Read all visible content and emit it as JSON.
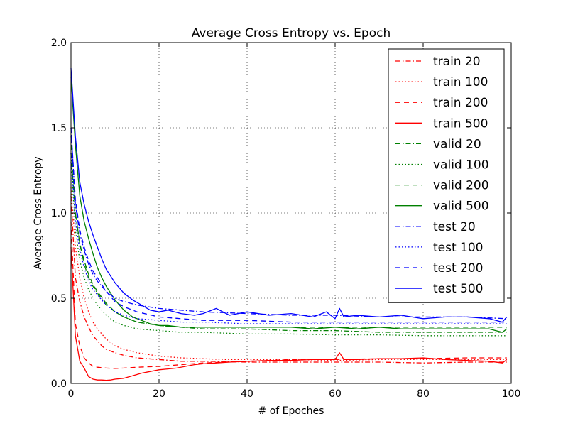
{
  "chart_data": {
    "type": "line",
    "title": "Average Cross Entropy vs. Epoch",
    "xlabel": "# of Epoches",
    "ylabel": "Average Cross Entropy",
    "xlim": [
      0,
      100
    ],
    "ylim": [
      0.0,
      2.0
    ],
    "xticks": [
      0,
      20,
      40,
      60,
      80,
      100
    ],
    "xtick_labels": [
      "0",
      "20",
      "40",
      "60",
      "80",
      "100"
    ],
    "yticks": [
      0.0,
      0.5,
      1.0,
      1.5,
      2.0
    ],
    "ytick_labels": [
      "0.0",
      "0.5",
      "1.0",
      "1.5",
      "2.0"
    ],
    "grid": true,
    "legend_position": "top-right",
    "series": [
      {
        "name": "train 20",
        "color": "#ff0000",
        "style": "dashdot",
        "x": [
          0,
          1,
          2,
          3,
          4,
          5,
          6,
          7,
          8,
          9,
          10,
          12,
          15,
          20,
          25,
          30,
          40,
          50,
          60,
          70,
          80,
          90,
          99
        ],
        "y": [
          1.1,
          0.62,
          0.48,
          0.39,
          0.33,
          0.28,
          0.25,
          0.22,
          0.2,
          0.19,
          0.18,
          0.165,
          0.15,
          0.14,
          0.13,
          0.13,
          0.125,
          0.125,
          0.125,
          0.125,
          0.12,
          0.125,
          0.125
        ]
      },
      {
        "name": "train 100",
        "color": "#ff0000",
        "style": "dotted",
        "x": [
          0,
          1,
          2,
          3,
          4,
          5,
          6,
          8,
          10,
          12,
          15,
          20,
          25,
          30,
          35,
          40,
          50,
          60,
          70,
          80,
          90,
          99
        ],
        "y": [
          1.15,
          0.8,
          0.62,
          0.5,
          0.42,
          0.36,
          0.32,
          0.26,
          0.22,
          0.2,
          0.18,
          0.16,
          0.15,
          0.145,
          0.14,
          0.14,
          0.14,
          0.135,
          0.14,
          0.14,
          0.14,
          0.14
        ]
      },
      {
        "name": "train 200",
        "color": "#ff0000",
        "style": "dashed",
        "x": [
          0,
          1,
          2,
          3,
          4,
          5,
          6,
          8,
          10,
          12,
          15,
          20,
          25,
          30,
          40,
          50,
          60,
          70,
          80,
          90,
          99
        ],
        "y": [
          0.95,
          0.35,
          0.22,
          0.15,
          0.12,
          0.1,
          0.095,
          0.09,
          0.088,
          0.09,
          0.095,
          0.1,
          0.11,
          0.12,
          0.13,
          0.14,
          0.14,
          0.145,
          0.145,
          0.15,
          0.15
        ]
      },
      {
        "name": "train 500",
        "color": "#ff0000",
        "style": "solid",
        "x": [
          0,
          1,
          2,
          3,
          4,
          5,
          6,
          7,
          8,
          9,
          10,
          12,
          14,
          16,
          18,
          20,
          22,
          24,
          26,
          28,
          30,
          33,
          36,
          40,
          45,
          50,
          55,
          60,
          61,
          62,
          65,
          70,
          75,
          80,
          85,
          90,
          95,
          98,
          99
        ],
        "y": [
          0.8,
          0.28,
          0.13,
          0.09,
          0.04,
          0.025,
          0.02,
          0.02,
          0.018,
          0.02,
          0.025,
          0.03,
          0.045,
          0.06,
          0.07,
          0.08,
          0.085,
          0.09,
          0.1,
          0.11,
          0.115,
          0.12,
          0.125,
          0.13,
          0.135,
          0.135,
          0.14,
          0.14,
          0.18,
          0.14,
          0.14,
          0.145,
          0.145,
          0.15,
          0.14,
          0.135,
          0.13,
          0.12,
          0.14
        ]
      },
      {
        "name": "valid 20",
        "color": "#008000",
        "style": "dashdot",
        "x": [
          0,
          1,
          2,
          3,
          4,
          5,
          6,
          8,
          10,
          12,
          15,
          20,
          25,
          30,
          35,
          40,
          50,
          60,
          70,
          80,
          90,
          99
        ],
        "y": [
          1.35,
          1.0,
          0.82,
          0.7,
          0.62,
          0.57,
          0.53,
          0.46,
          0.42,
          0.39,
          0.36,
          0.34,
          0.33,
          0.32,
          0.32,
          0.32,
          0.31,
          0.31,
          0.3,
          0.3,
          0.3,
          0.3
        ]
      },
      {
        "name": "valid 100",
        "color": "#008000",
        "style": "dotted",
        "x": [
          0,
          1,
          2,
          3,
          4,
          5,
          6,
          8,
          10,
          12,
          15,
          20,
          25,
          30,
          40,
          50,
          60,
          70,
          80,
          90,
          99
        ],
        "y": [
          1.3,
          0.9,
          0.72,
          0.62,
          0.55,
          0.5,
          0.46,
          0.4,
          0.36,
          0.34,
          0.32,
          0.31,
          0.3,
          0.3,
          0.29,
          0.29,
          0.285,
          0.285,
          0.28,
          0.28,
          0.28
        ]
      },
      {
        "name": "valid 200",
        "color": "#008000",
        "style": "dashed",
        "x": [
          0,
          1,
          2,
          3,
          4,
          5,
          6,
          8,
          10,
          12,
          15,
          20,
          25,
          30,
          40,
          50,
          60,
          70,
          80,
          90,
          99
        ],
        "y": [
          1.45,
          1.0,
          0.82,
          0.72,
          0.64,
          0.58,
          0.54,
          0.47,
          0.42,
          0.39,
          0.36,
          0.34,
          0.33,
          0.33,
          0.33,
          0.33,
          0.33,
          0.33,
          0.33,
          0.33,
          0.33
        ]
      },
      {
        "name": "valid 500",
        "color": "#008000",
        "style": "solid",
        "x": [
          0,
          1,
          2,
          3,
          4,
          5,
          6,
          7,
          8,
          10,
          12,
          14,
          16,
          18,
          20,
          22,
          25,
          30,
          35,
          40,
          45,
          50,
          55,
          60,
          65,
          70,
          75,
          80,
          85,
          90,
          95,
          98,
          99
        ],
        "y": [
          1.8,
          1.4,
          1.1,
          0.95,
          0.85,
          0.76,
          0.68,
          0.62,
          0.57,
          0.49,
          0.43,
          0.39,
          0.37,
          0.35,
          0.34,
          0.34,
          0.33,
          0.33,
          0.33,
          0.33,
          0.33,
          0.33,
          0.32,
          0.33,
          0.32,
          0.33,
          0.32,
          0.32,
          0.32,
          0.32,
          0.32,
          0.3,
          0.32
        ]
      },
      {
        "name": "test 20",
        "color": "#0000ff",
        "style": "dashdot",
        "x": [
          0,
          1,
          2,
          3,
          4,
          5,
          6,
          8,
          10,
          12,
          15,
          20,
          25,
          30,
          40,
          50,
          60,
          70,
          80,
          90,
          99
        ],
        "y": [
          1.5,
          1.05,
          0.88,
          0.78,
          0.7,
          0.64,
          0.6,
          0.54,
          0.5,
          0.48,
          0.46,
          0.44,
          0.43,
          0.42,
          0.41,
          0.4,
          0.4,
          0.39,
          0.39,
          0.39,
          0.38
        ]
      },
      {
        "name": "test 100",
        "color": "#0000ff",
        "style": "dotted",
        "x": [
          0,
          1,
          2,
          3,
          4,
          5,
          6,
          8,
          10,
          12,
          15,
          20,
          25,
          30,
          40,
          50,
          60,
          70,
          80,
          90,
          99
        ],
        "y": [
          1.35,
          0.95,
          0.78,
          0.68,
          0.6,
          0.55,
          0.52,
          0.46,
          0.42,
          0.4,
          0.38,
          0.37,
          0.36,
          0.36,
          0.35,
          0.35,
          0.35,
          0.35,
          0.35,
          0.35,
          0.35
        ]
      },
      {
        "name": "test 200",
        "color": "#0000ff",
        "style": "dashed",
        "x": [
          0,
          1,
          2,
          3,
          4,
          5,
          6,
          8,
          10,
          12,
          15,
          20,
          25,
          30,
          40,
          50,
          60,
          70,
          80,
          90,
          99
        ],
        "y": [
          1.5,
          1.08,
          0.9,
          0.8,
          0.72,
          0.66,
          0.62,
          0.54,
          0.48,
          0.45,
          0.42,
          0.39,
          0.38,
          0.37,
          0.37,
          0.36,
          0.36,
          0.36,
          0.36,
          0.36,
          0.36
        ]
      },
      {
        "name": "test 500",
        "color": "#0000ff",
        "style": "solid",
        "x": [
          0,
          1,
          2,
          3,
          4,
          5,
          6,
          7,
          8,
          10,
          12,
          14,
          16,
          18,
          20,
          22,
          25,
          28,
          30,
          33,
          36,
          40,
          45,
          50,
          55,
          58,
          60,
          61,
          62,
          65,
          70,
          75,
          80,
          85,
          90,
          95,
          98,
          99
        ],
        "y": [
          1.85,
          1.45,
          1.18,
          1.05,
          0.95,
          0.87,
          0.8,
          0.73,
          0.67,
          0.59,
          0.53,
          0.49,
          0.46,
          0.43,
          0.42,
          0.43,
          0.41,
          0.4,
          0.41,
          0.44,
          0.4,
          0.42,
          0.4,
          0.41,
          0.39,
          0.42,
          0.38,
          0.44,
          0.39,
          0.4,
          0.39,
          0.4,
          0.38,
          0.39,
          0.39,
          0.38,
          0.36,
          0.39
        ]
      }
    ]
  }
}
